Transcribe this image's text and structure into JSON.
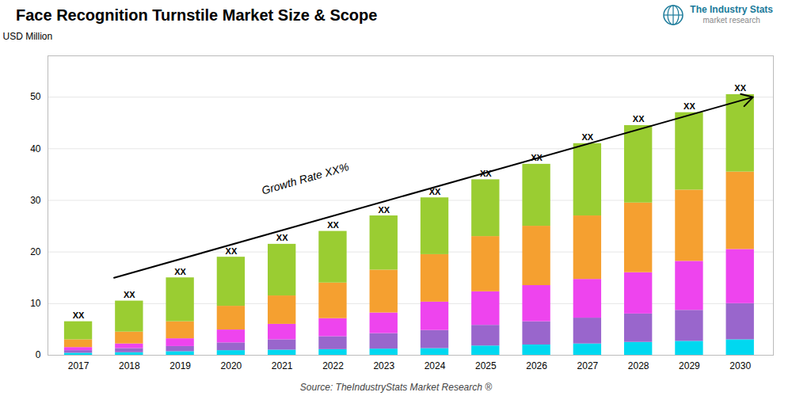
{
  "chart_data": {
    "type": "bar",
    "stacked": true,
    "title": "Face Recognition Turnstile Market Size & Scope",
    "ylabel": "USD Million",
    "source": "Source: TheIndustryStats Market Research ®",
    "logo": {
      "name": "The Industry Stats",
      "tagline": "market research"
    },
    "categories": [
      "2017",
      "2018",
      "2019",
      "2020",
      "2021",
      "2022",
      "2023",
      "2024",
      "2025",
      "2026",
      "2027",
      "2028",
      "2029",
      "2030"
    ],
    "series": [
      {
        "color": "#00d8f0",
        "values": [
          0.4,
          0.5,
          0.7,
          0.9,
          1.0,
          1.1,
          1.2,
          1.3,
          1.8,
          2.0,
          2.2,
          2.5,
          2.7,
          3.0
        ]
      },
      {
        "color": "#9966cc",
        "values": [
          0.5,
          0.8,
          1.0,
          1.5,
          2.0,
          2.5,
          3.0,
          3.5,
          4.0,
          4.5,
          5.0,
          5.5,
          6.0,
          7.0
        ]
      },
      {
        "color": "#ee44ee",
        "values": [
          0.6,
          0.9,
          1.5,
          2.5,
          3.0,
          3.5,
          4.0,
          5.5,
          6.5,
          7.0,
          7.5,
          8.0,
          9.5,
          10.5
        ]
      },
      {
        "color": "#f5a030",
        "values": [
          1.5,
          2.3,
          3.3,
          4.6,
          5.5,
          6.9,
          8.3,
          9.2,
          10.7,
          11.5,
          12.3,
          13.5,
          13.8,
          15.0
        ]
      },
      {
        "color": "#9acd32",
        "values": [
          3.5,
          6.0,
          8.5,
          9.5,
          10.0,
          10.0,
          10.5,
          11.0,
          11.0,
          12.0,
          14.0,
          15.0,
          15.0,
          15.0
        ]
      }
    ],
    "totals": [
      6.5,
      10.5,
      15,
      19,
      21.5,
      24,
      27,
      30.5,
      34,
      37,
      41,
      44.5,
      47,
      50.5
    ],
    "total_labels": [
      "XX",
      "XX",
      "XX",
      "XX",
      "XX",
      "XX",
      "XX",
      "XX",
      "XX",
      "XX",
      "XX",
      "XX",
      "XX",
      "XX"
    ],
    "annotations": [
      {
        "text": "Growth Rate XX%",
        "arrow": {
          "x1": "2018",
          "y1": 15,
          "x2": "2030",
          "y2": 50
        }
      }
    ],
    "ylim": [
      0,
      58
    ],
    "yticks": [
      0,
      10,
      20,
      30,
      40,
      50
    ],
    "grid": true
  }
}
